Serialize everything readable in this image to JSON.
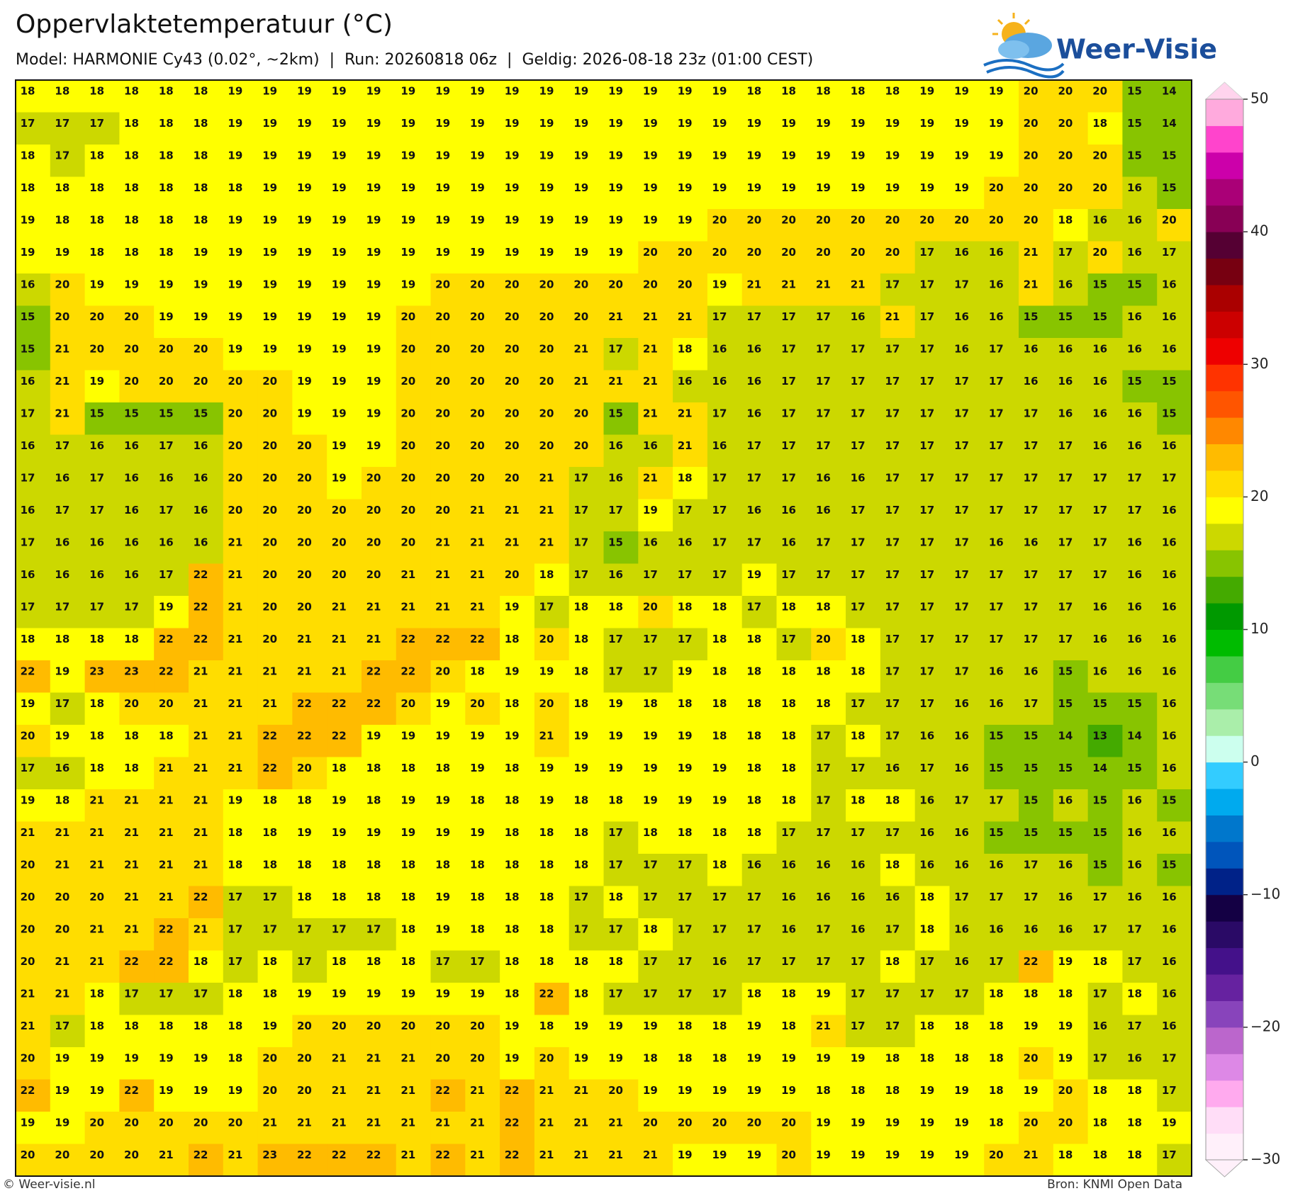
{
  "header": {
    "title": "Oppervlaktetemperatuur (°C)",
    "subtitle": "Model: HARMONIE Cy43 (0.02°, ~2km)  |  Run: 20260818 06z  |  Geldig: 2026-08-18 23z (01:00 CEST)"
  },
  "logo": "Weer-Visie",
  "map": {
    "values": [
      [
        18,
        18,
        18,
        18,
        18,
        18,
        19,
        19,
        19,
        19,
        19,
        19,
        19,
        19,
        19,
        19,
        19,
        19,
        19,
        19,
        19,
        18,
        18,
        18,
        18,
        18,
        19,
        19,
        19,
        20,
        20,
        20,
        15,
        14
      ],
      [
        17,
        17,
        17,
        18,
        18,
        18,
        19,
        19,
        19,
        19,
        19,
        19,
        19,
        19,
        19,
        19,
        19,
        19,
        19,
        19,
        19,
        19,
        19,
        19,
        19,
        19,
        19,
        19,
        19,
        20,
        20,
        18,
        15,
        14
      ],
      [
        18,
        17,
        18,
        18,
        18,
        18,
        19,
        19,
        19,
        19,
        19,
        19,
        19,
        19,
        19,
        19,
        19,
        19,
        19,
        19,
        19,
        19,
        19,
        19,
        19,
        19,
        19,
        19,
        19,
        20,
        20,
        20,
        15,
        15
      ],
      [
        18,
        18,
        18,
        18,
        18,
        18,
        18,
        19,
        19,
        19,
        19,
        19,
        19,
        19,
        19,
        19,
        19,
        19,
        19,
        19,
        19,
        19,
        19,
        19,
        19,
        19,
        19,
        19,
        20,
        20,
        20,
        20,
        16,
        15
      ],
      [
        19,
        18,
        18,
        18,
        18,
        18,
        19,
        19,
        19,
        19,
        19,
        19,
        19,
        19,
        19,
        19,
        19,
        19,
        19,
        19,
        20,
        20,
        20,
        20,
        20,
        20,
        20,
        20,
        20,
        20,
        18,
        16,
        16,
        20
      ],
      [
        19,
        19,
        18,
        18,
        18,
        19,
        19,
        19,
        19,
        19,
        19,
        19,
        19,
        19,
        19,
        19,
        19,
        19,
        20,
        20,
        20,
        20,
        20,
        20,
        20,
        20,
        17,
        16,
        16,
        21,
        17,
        20,
        16,
        17
      ],
      [
        16,
        20,
        19,
        19,
        19,
        19,
        19,
        19,
        19,
        19,
        19,
        19,
        20,
        20,
        20,
        20,
        20,
        20,
        20,
        20,
        19,
        21,
        21,
        21,
        21,
        17,
        17,
        17,
        16,
        21,
        16,
        15,
        15,
        16
      ],
      [
        15,
        20,
        20,
        20,
        19,
        19,
        19,
        19,
        19,
        19,
        19,
        20,
        20,
        20,
        20,
        20,
        20,
        21,
        21,
        21,
        17,
        17,
        17,
        17,
        16,
        21,
        17,
        16,
        16,
        15,
        15,
        15,
        16,
        16
      ],
      [
        15,
        21,
        20,
        20,
        20,
        20,
        19,
        19,
        19,
        19,
        19,
        20,
        20,
        20,
        20,
        20,
        21,
        17,
        21,
        18,
        16,
        16,
        17,
        17,
        17,
        17,
        17,
        16,
        17,
        16,
        16,
        16,
        16,
        16
      ],
      [
        16,
        21,
        19,
        20,
        20,
        20,
        20,
        20,
        19,
        19,
        19,
        20,
        20,
        20,
        20,
        20,
        21,
        21,
        21,
        16,
        16,
        16,
        17,
        17,
        17,
        17,
        17,
        17,
        17,
        16,
        16,
        16,
        15,
        15
      ],
      [
        17,
        21,
        15,
        15,
        15,
        15,
        20,
        20,
        19,
        19,
        19,
        20,
        20,
        20,
        20,
        20,
        20,
        15,
        21,
        21,
        17,
        16,
        17,
        17,
        17,
        17,
        17,
        17,
        17,
        17,
        16,
        16,
        16,
        15
      ],
      [
        16,
        17,
        16,
        16,
        17,
        16,
        20,
        20,
        20,
        19,
        19,
        20,
        20,
        20,
        20,
        20,
        20,
        16,
        16,
        21,
        16,
        17,
        17,
        17,
        17,
        17,
        17,
        17,
        17,
        17,
        17,
        16,
        16,
        16
      ],
      [
        17,
        16,
        17,
        16,
        16,
        16,
        20,
        20,
        20,
        19,
        20,
        20,
        20,
        20,
        20,
        21,
        17,
        16,
        21,
        18,
        17,
        17,
        17,
        16,
        16,
        17,
        17,
        17,
        17,
        17,
        17,
        17,
        17,
        17
      ],
      [
        16,
        17,
        17,
        16,
        17,
        16,
        20,
        20,
        20,
        20,
        20,
        20,
        20,
        21,
        21,
        21,
        17,
        17,
        19,
        17,
        17,
        16,
        16,
        16,
        17,
        17,
        17,
        17,
        17,
        17,
        17,
        17,
        17,
        16
      ],
      [
        17,
        16,
        16,
        16,
        16,
        16,
        21,
        20,
        20,
        20,
        20,
        20,
        21,
        21,
        21,
        21,
        17,
        15,
        16,
        16,
        17,
        17,
        16,
        17,
        17,
        17,
        17,
        17,
        16,
        16,
        17,
        17,
        16,
        16
      ],
      [
        16,
        16,
        16,
        16,
        17,
        22,
        21,
        20,
        20,
        20,
        20,
        21,
        21,
        21,
        20,
        18,
        17,
        16,
        17,
        17,
        17,
        19,
        17,
        17,
        17,
        17,
        17,
        17,
        17,
        17,
        17,
        17,
        16,
        16
      ],
      [
        17,
        17,
        17,
        17,
        19,
        22,
        21,
        20,
        20,
        21,
        21,
        21,
        21,
        21,
        19,
        17,
        18,
        18,
        20,
        18,
        18,
        17,
        18,
        18,
        17,
        17,
        17,
        17,
        17,
        17,
        17,
        16,
        16,
        16
      ],
      [
        18,
        18,
        18,
        18,
        22,
        22,
        21,
        20,
        21,
        21,
        21,
        22,
        22,
        22,
        18,
        20,
        18,
        17,
        17,
        17,
        18,
        18,
        17,
        20,
        18,
        17,
        17,
        17,
        17,
        17,
        17,
        16,
        16,
        16
      ],
      [
        22,
        19,
        23,
        23,
        22,
        21,
        21,
        21,
        21,
        21,
        22,
        22,
        20,
        18,
        19,
        19,
        18,
        17,
        17,
        19,
        18,
        18,
        18,
        18,
        18,
        17,
        17,
        17,
        16,
        16,
        15,
        16,
        16,
        16
      ],
      [
        19,
        17,
        18,
        20,
        20,
        21,
        21,
        21,
        22,
        22,
        22,
        20,
        19,
        20,
        18,
        20,
        18,
        19,
        18,
        18,
        18,
        18,
        18,
        18,
        17,
        17,
        17,
        16,
        16,
        17,
        15,
        15,
        15,
        16
      ],
      [
        20,
        19,
        18,
        18,
        18,
        21,
        21,
        22,
        22,
        22,
        19,
        19,
        19,
        19,
        19,
        21,
        19,
        19,
        19,
        19,
        18,
        18,
        18,
        17,
        18,
        17,
        16,
        16,
        15,
        15,
        14,
        13,
        14,
        16
      ],
      [
        17,
        16,
        18,
        18,
        21,
        21,
        21,
        22,
        20,
        18,
        18,
        18,
        18,
        19,
        18,
        19,
        19,
        19,
        19,
        19,
        19,
        18,
        18,
        17,
        17,
        16,
        17,
        16,
        15,
        15,
        15,
        14,
        15,
        16
      ],
      [
        19,
        18,
        21,
        21,
        21,
        21,
        19,
        18,
        18,
        19,
        18,
        19,
        19,
        18,
        18,
        19,
        18,
        18,
        19,
        19,
        19,
        18,
        18,
        17,
        18,
        18,
        16,
        17,
        17,
        15,
        16,
        15,
        16,
        15
      ],
      [
        21,
        21,
        21,
        21,
        21,
        21,
        18,
        18,
        19,
        19,
        19,
        19,
        19,
        19,
        18,
        18,
        18,
        17,
        18,
        18,
        18,
        18,
        17,
        17,
        17,
        17,
        16,
        16,
        15,
        15,
        15,
        15,
        16,
        16
      ],
      [
        20,
        21,
        21,
        21,
        21,
        21,
        18,
        18,
        18,
        18,
        18,
        18,
        18,
        18,
        18,
        18,
        18,
        17,
        17,
        17,
        18,
        16,
        16,
        16,
        16,
        18,
        16,
        16,
        16,
        17,
        16,
        15,
        16,
        15
      ],
      [
        20,
        20,
        20,
        21,
        21,
        22,
        17,
        17,
        18,
        18,
        18,
        18,
        19,
        18,
        18,
        18,
        17,
        18,
        17,
        17,
        17,
        17,
        16,
        16,
        16,
        16,
        18,
        17,
        17,
        17,
        16,
        17,
        16,
        16
      ],
      [
        20,
        20,
        21,
        21,
        22,
        21,
        17,
        17,
        17,
        17,
        17,
        18,
        19,
        18,
        18,
        18,
        17,
        17,
        18,
        17,
        17,
        17,
        16,
        17,
        16,
        17,
        18,
        16,
        16,
        16,
        16,
        17,
        17,
        16
      ],
      [
        20,
        21,
        21,
        22,
        22,
        18,
        17,
        18,
        17,
        18,
        18,
        18,
        17,
        17,
        18,
        18,
        18,
        18,
        17,
        17,
        16,
        17,
        17,
        17,
        17,
        18,
        17,
        16,
        17,
        22,
        19,
        18,
        17,
        16
      ],
      [
        21,
        21,
        18,
        17,
        17,
        17,
        18,
        18,
        19,
        19,
        19,
        19,
        19,
        19,
        18,
        22,
        18,
        17,
        17,
        17,
        17,
        18,
        18,
        19,
        17,
        17,
        17,
        17,
        18,
        18,
        18,
        17,
        18,
        16
      ],
      [
        21,
        17,
        18,
        18,
        18,
        18,
        18,
        19,
        20,
        20,
        20,
        20,
        20,
        20,
        19,
        18,
        19,
        19,
        19,
        18,
        18,
        19,
        18,
        21,
        17,
        17,
        18,
        18,
        18,
        19,
        19,
        16,
        17,
        16
      ],
      [
        20,
        19,
        19,
        19,
        19,
        19,
        18,
        20,
        20,
        21,
        21,
        21,
        20,
        20,
        19,
        20,
        19,
        19,
        18,
        18,
        18,
        19,
        19,
        19,
        19,
        18,
        18,
        18,
        18,
        20,
        19,
        17,
        16,
        17
      ],
      [
        22,
        19,
        19,
        22,
        19,
        19,
        19,
        20,
        20,
        21,
        21,
        21,
        22,
        21,
        22,
        21,
        21,
        20,
        19,
        19,
        19,
        19,
        19,
        18,
        18,
        18,
        19,
        19,
        18,
        19,
        20,
        18,
        18,
        17
      ],
      [
        19,
        19,
        20,
        20,
        20,
        20,
        20,
        21,
        21,
        21,
        21,
        21,
        21,
        21,
        22,
        21,
        21,
        21,
        20,
        20,
        20,
        20,
        20,
        19,
        19,
        19,
        19,
        19,
        18,
        20,
        20,
        18,
        18,
        19
      ],
      [
        20,
        20,
        20,
        20,
        21,
        22,
        21,
        23,
        22,
        22,
        22,
        21,
        22,
        21,
        22,
        21,
        21,
        21,
        21,
        19,
        19,
        19,
        20,
        19,
        19,
        19,
        19,
        19,
        20,
        21,
        18,
        18,
        18,
        17
      ]
    ]
  },
  "colorbar": {
    "lim": [
      -30,
      50
    ],
    "ticks": [
      {
        "value": -30,
        "label": "−30"
      },
      {
        "value": -20,
        "label": "−20"
      },
      {
        "value": -10,
        "label": "−10"
      },
      0,
      10,
      20,
      30,
      40,
      50
    ],
    "colors": [
      "#fff0fa",
      "#ffddf7",
      "#ffaaee",
      "#dd88e6",
      "#bb66cc",
      "#8844bb",
      "#6622a0",
      "#44118a",
      "#2a0a66",
      "#140044",
      "#002288",
      "#0055bb",
      "#0077cc",
      "#00aaee",
      "#33ccff",
      "#ccffee",
      "#aaeeaa",
      "#77dd77",
      "#44cc44",
      "#00bb00",
      "#009900",
      "#44aa00",
      "#88c400",
      "#ccd800",
      "#ffff00",
      "#ffdd00",
      "#ffbb00",
      "#ff8800",
      "#ff5500",
      "#ff3300",
      "#ee0000",
      "#cc0000",
      "#aa0000",
      "#770011",
      "#550033",
      "#880055",
      "#aa0077",
      "#cc00aa",
      "#ff44cc",
      "#ffaadd"
    ]
  },
  "footer": {
    "left": "© Weer-visie.nl",
    "right": "Bron: KNMI Open Data"
  }
}
